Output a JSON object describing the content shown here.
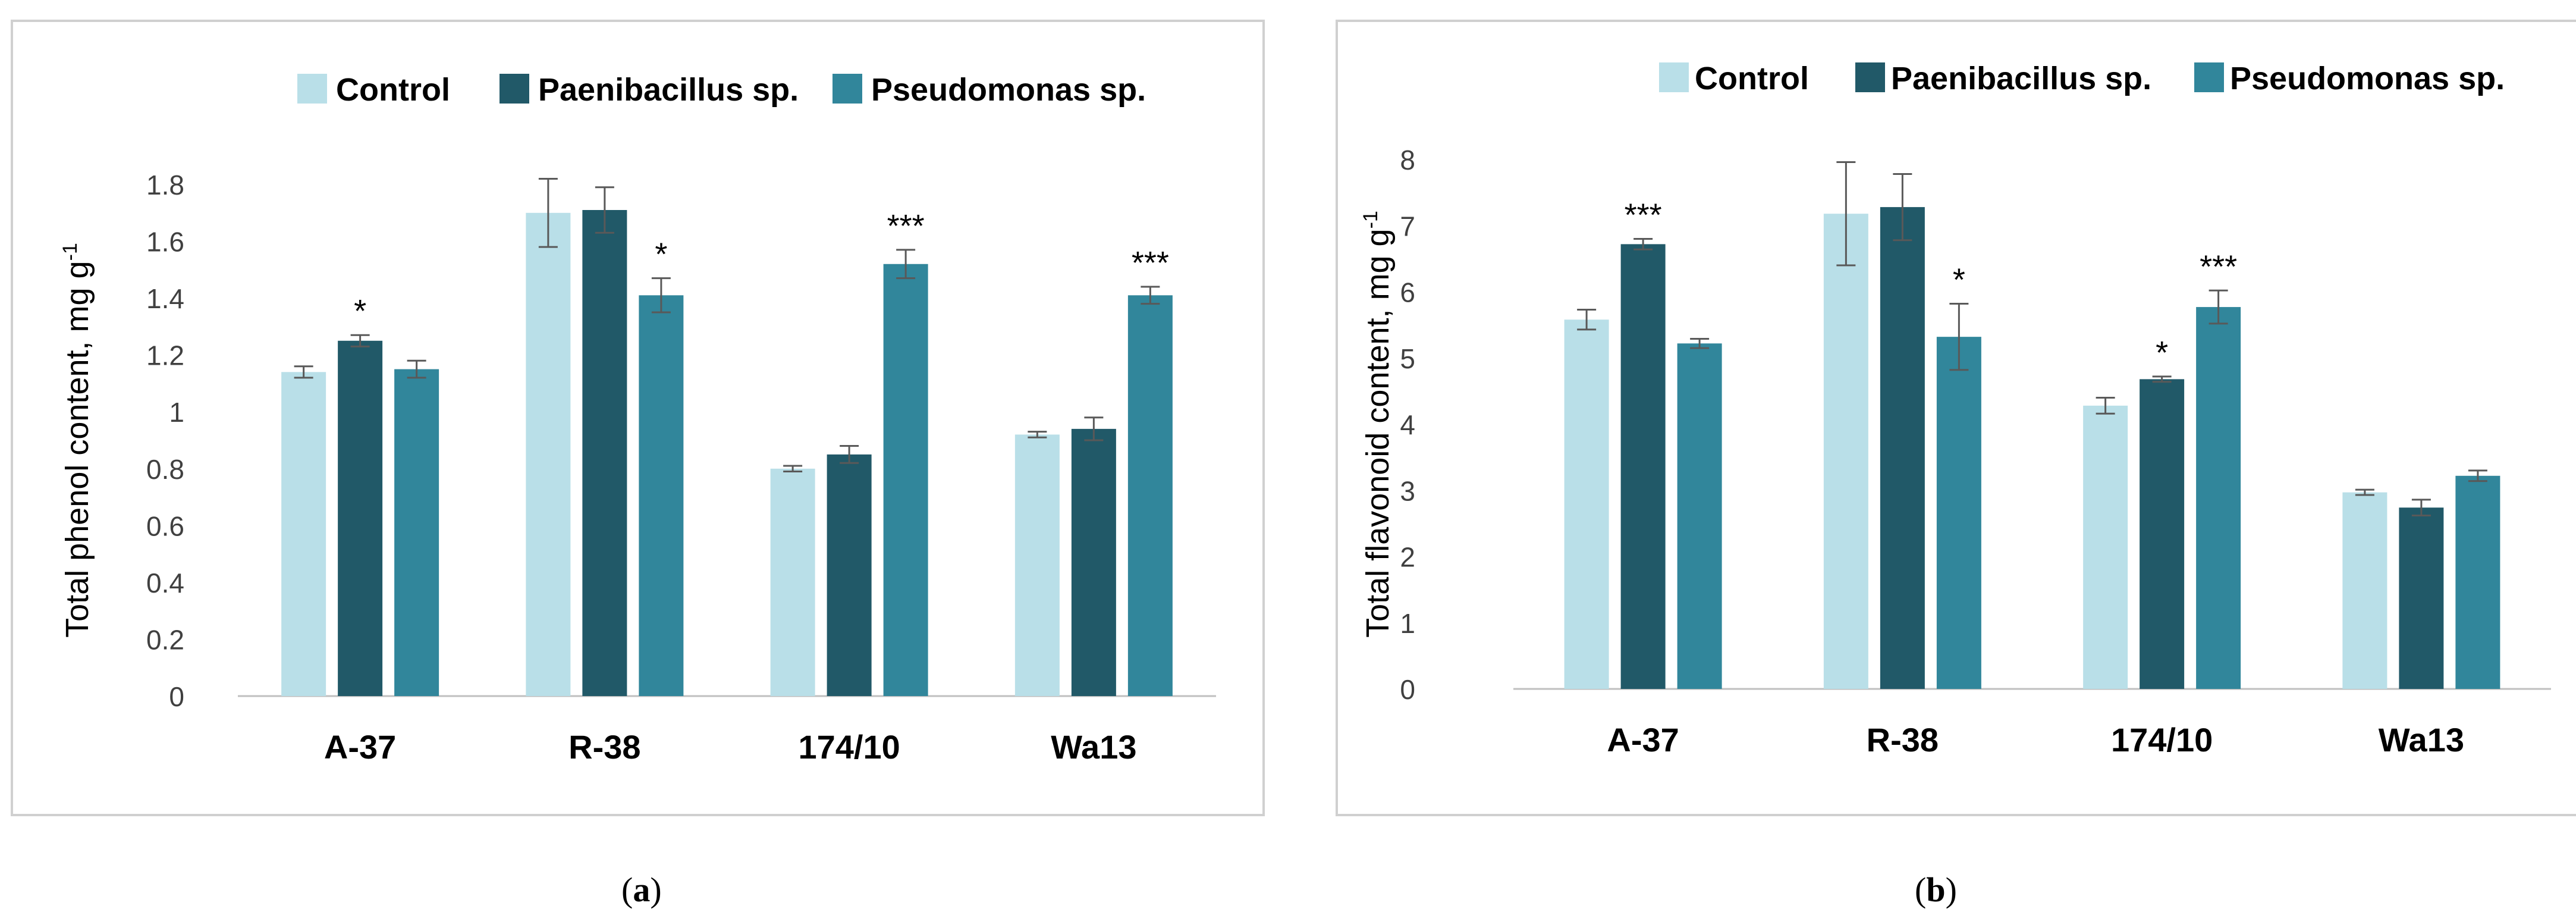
{
  "chart_data": [
    {
      "type": "bar",
      "panel_label": "a",
      "categories": [
        "A-37",
        "R-38",
        "174/10",
        "Wa13"
      ],
      "ylabel": "Total phenol content, mg g",
      "ylabel_sup": "-1",
      "ylim": [
        0,
        1.8
      ],
      "yticks": [
        0,
        0.2,
        0.4,
        0.6,
        0.8,
        1,
        1.2,
        1.4,
        1.6,
        1.8
      ],
      "ytick_labels": [
        "0",
        "0.2",
        "0.4",
        "0.6",
        "0.8",
        "1",
        "1.2",
        "1.4",
        "1.6",
        "1.8"
      ],
      "legend_position": "top",
      "series": [
        {
          "name": "Control",
          "color": "#b9dfe8",
          "values": [
            1.14,
            1.7,
            0.8,
            0.92
          ],
          "errors": [
            0.02,
            0.12,
            0.01,
            0.01
          ],
          "markers": [
            "",
            "",
            "",
            ""
          ]
        },
        {
          "name": "Paenibacillus sp.",
          "color": "#215968",
          "values": [
            1.25,
            1.71,
            0.85,
            0.94
          ],
          "errors": [
            0.02,
            0.08,
            0.03,
            0.04
          ],
          "markers": [
            "*",
            "",
            "",
            ""
          ]
        },
        {
          "name": "Pseudomonas sp.",
          "color": "#31869b",
          "values": [
            1.15,
            1.41,
            1.52,
            1.41
          ],
          "errors": [
            0.03,
            0.06,
            0.05,
            0.03
          ],
          "markers": [
            "",
            "*",
            "***",
            "***"
          ]
        }
      ]
    },
    {
      "type": "bar",
      "panel_label": "b",
      "categories": [
        "A-37",
        "R-38",
        "174/10",
        "Wa13"
      ],
      "ylabel": "Total flavonoid content, mg g",
      "ylabel_sup": "-1",
      "ylim": [
        0,
        8
      ],
      "yticks": [
        0,
        1,
        2,
        3,
        4,
        5,
        6,
        7,
        8
      ],
      "ytick_labels": [
        "0",
        "1",
        "2",
        "3",
        "4",
        "5",
        "6",
        "7",
        "8"
      ],
      "legend_position": "top",
      "series": [
        {
          "name": "Control",
          "color": "#b9dfe8",
          "values": [
            5.58,
            7.18,
            4.28,
            2.97
          ],
          "errors": [
            0.15,
            0.78,
            0.12,
            0.04
          ],
          "markers": [
            "",
            "",
            "",
            ""
          ]
        },
        {
          "name": "Paenibacillus sp.",
          "color": "#215968",
          "values": [
            6.72,
            7.28,
            4.68,
            2.74
          ],
          "errors": [
            0.08,
            0.5,
            0.04,
            0.12
          ],
          "markers": [
            "***",
            "",
            "*",
            ""
          ]
        },
        {
          "name": "Pseudomonas sp.",
          "color": "#31869b",
          "values": [
            5.22,
            5.32,
            5.77,
            3.22
          ],
          "errors": [
            0.07,
            0.5,
            0.25,
            0.08
          ],
          "markers": [
            "",
            "*",
            "***",
            ""
          ]
        }
      ]
    }
  ]
}
